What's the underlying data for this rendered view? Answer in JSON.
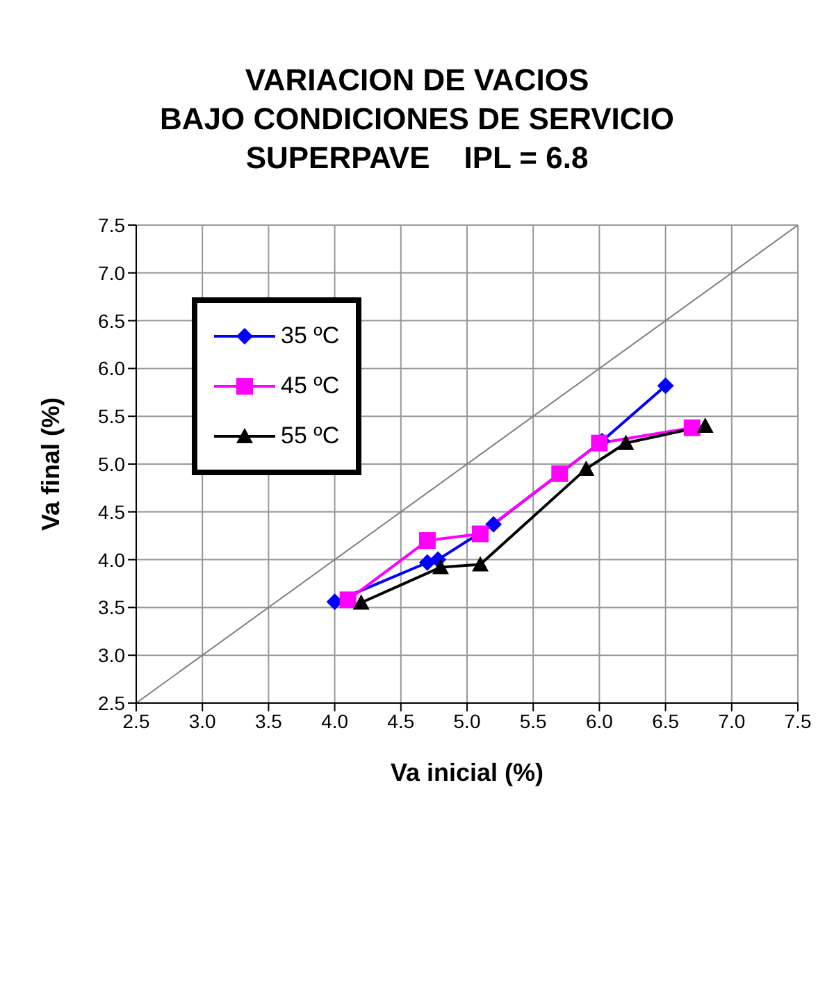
{
  "chart_data": {
    "type": "line",
    "title": "VARIACION DE VACIOS\nBAJO CONDICIONES DE SERVICIO\nSUPERPAVE    IPL = 6.8",
    "xlabel": "Va inicial (%)",
    "ylabel": "Va final (%)",
    "xlim": [
      2.5,
      7.5
    ],
    "ylim": [
      2.5,
      7.5
    ],
    "xticks": [
      2.5,
      {
        "value": 3,
        "label": "3.0"
      },
      3.5,
      {
        "value": 4,
        "label": "4.0"
      },
      4.5,
      {
        "value": 5,
        "label": "5.0"
      },
      5.5,
      {
        "value": 6,
        "label": "6.0"
      },
      6.5,
      {
        "value": 7,
        "label": "7.0"
      },
      7.5
    ],
    "yticks": [
      2.5,
      {
        "value": 3,
        "label": "3.0"
      },
      3.5,
      {
        "value": 4,
        "label": "4.0"
      },
      4.5,
      {
        "value": 5,
        "label": "5.0"
      },
      5.5,
      {
        "value": 6,
        "label": "6.0"
      },
      6.5,
      {
        "value": 7,
        "label": "7.0"
      },
      7.5
    ],
    "grid": true,
    "legend": "top left",
    "series": [
      {
        "name": "35 ºC",
        "color": "#0000ff",
        "marker": "diamond",
        "x": [
          4.0,
          4.7,
          4.78,
          5.2,
          6.02,
          6.5
        ],
        "values": [
          3.56,
          3.97,
          4.0,
          4.37,
          5.24,
          5.82
        ]
      },
      {
        "name": "45 ºC",
        "color": "#ff00ff",
        "marker": "square",
        "x": [
          4.1,
          4.7,
          5.1,
          5.7,
          6.0,
          6.7
        ],
        "values": [
          3.58,
          4.2,
          4.27,
          4.9,
          5.22,
          5.38
        ]
      },
      {
        "name": "55 ºC",
        "color": "#000000",
        "marker": "triangle",
        "x": [
          4.2,
          4.8,
          5.1,
          5.9,
          6.2,
          6.8
        ],
        "values": [
          3.55,
          3.92,
          3.95,
          4.95,
          5.22,
          5.4
        ]
      },
      {
        "color": "#808080",
        "marker": "none",
        "x": [
          2.5,
          7.5
        ],
        "values": [
          2.5,
          7.5
        ]
      }
    ]
  }
}
